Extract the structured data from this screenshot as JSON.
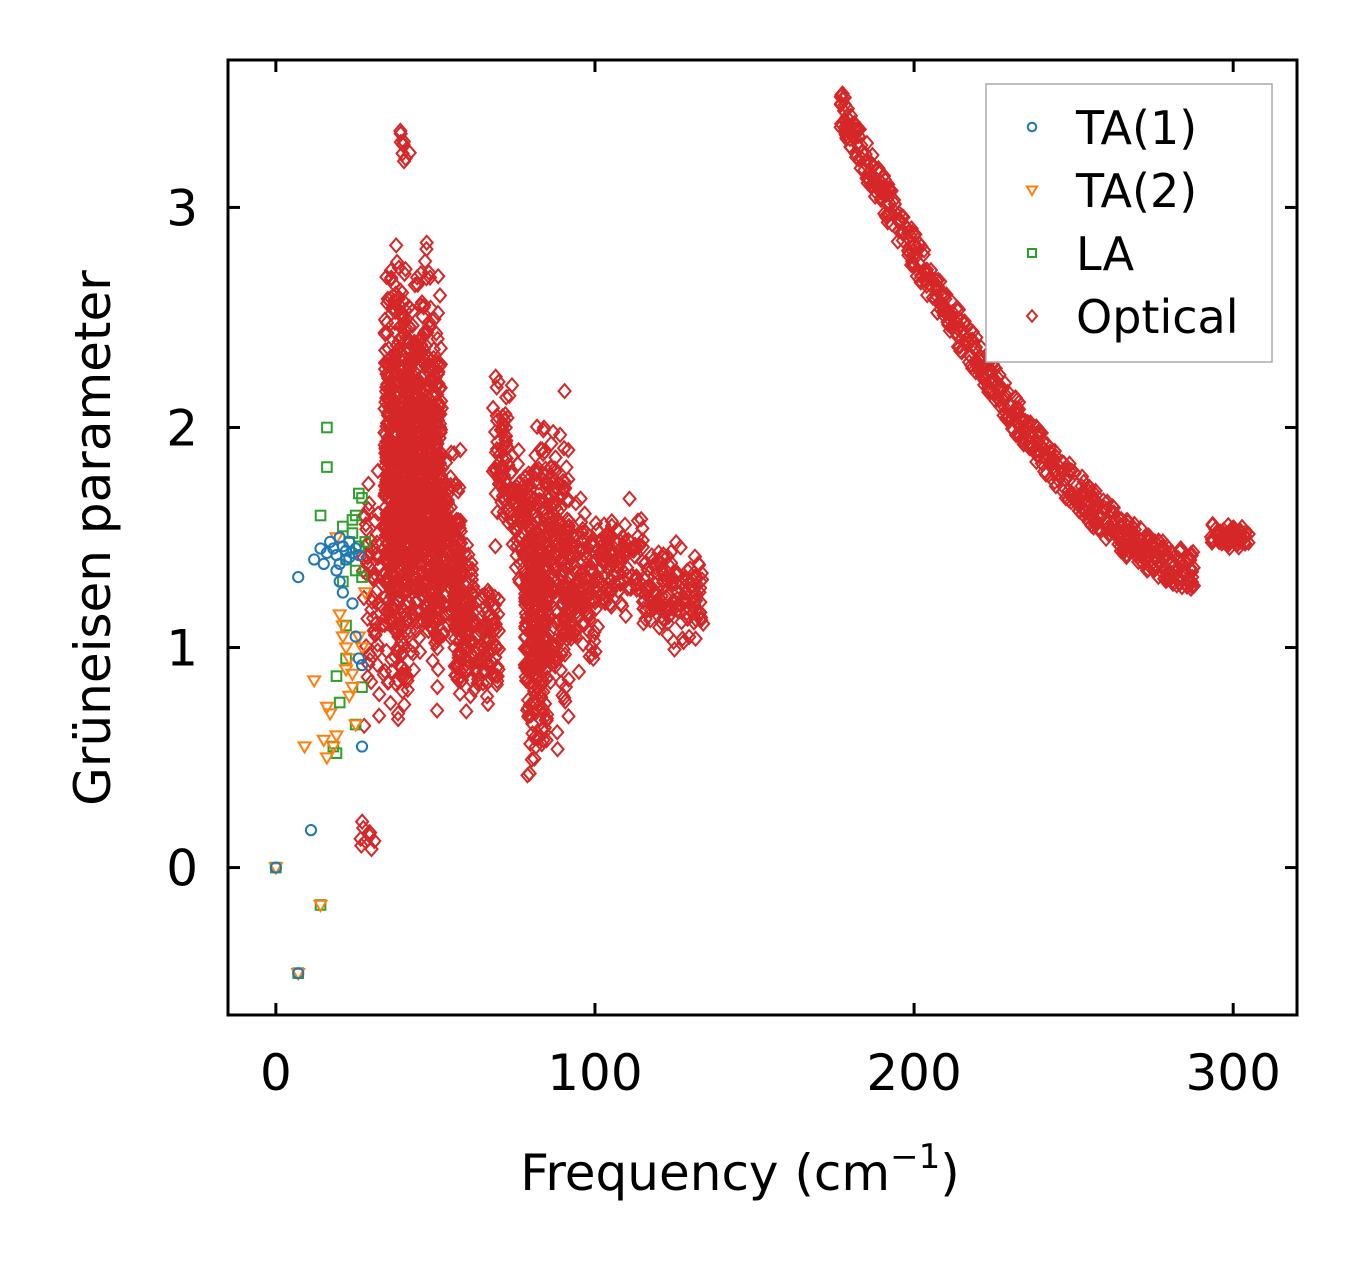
{
  "chart_data": {
    "type": "scatter",
    "title": "",
    "xlabel": "Frequency (cm",
    "xlabel_sup": "−1",
    "xlabel_tail": ")",
    "ylabel": "Grüneisen parameter",
    "xlim": [
      -15,
      320
    ],
    "ylim": [
      -0.67,
      3.67
    ],
    "xticks": [
      0,
      100,
      200,
      300
    ],
    "xtick_labels": [
      "0",
      "100",
      "200",
      "300"
    ],
    "yticks": [
      0,
      1,
      2,
      3
    ],
    "ytick_labels": [
      "0",
      "1",
      "2",
      "3"
    ],
    "grid": false,
    "legend_position": "top-right",
    "series": [
      {
        "name": "TA(1)",
        "marker": "circle",
        "color": "#1f77b4",
        "points": [
          [
            0,
            0
          ],
          [
            7,
            -0.48
          ],
          [
            7,
            1.32
          ],
          [
            11,
            0.17
          ],
          [
            12,
            1.4
          ],
          [
            14,
            1.45
          ],
          [
            15,
            1.38
          ],
          [
            16,
            1.43
          ],
          [
            17,
            1.48
          ],
          [
            18,
            1.45
          ],
          [
            19,
            1.42
          ],
          [
            20,
            1.5
          ],
          [
            20,
            1.38
          ],
          [
            21,
            1.46
          ],
          [
            22,
            1.4
          ],
          [
            22,
            1.44
          ],
          [
            23,
            1.48
          ],
          [
            23,
            1.41
          ],
          [
            24,
            1.43
          ],
          [
            24,
            1.2
          ],
          [
            25,
            1.05
          ],
          [
            26,
            0.95
          ],
          [
            27,
            0.92
          ],
          [
            27,
            0.55
          ],
          [
            20,
            1.3
          ],
          [
            21,
            1.25
          ],
          [
            19,
            1.35
          ],
          [
            25,
            1.45
          ],
          [
            26,
            1.42
          ]
        ]
      },
      {
        "name": "TA(2)",
        "marker": "triangle-down",
        "color": "#ff7f0e",
        "points": [
          [
            0,
            0
          ],
          [
            7,
            -0.48
          ],
          [
            9,
            0.55
          ],
          [
            12,
            0.85
          ],
          [
            14,
            -0.17
          ],
          [
            15,
            0.58
          ],
          [
            16,
            0.5
          ],
          [
            16,
            0.73
          ],
          [
            17,
            0.7
          ],
          [
            18,
            0.55
          ],
          [
            19,
            0.6
          ],
          [
            20,
            1.15
          ],
          [
            21,
            1.1
          ],
          [
            22,
            1.0
          ],
          [
            22,
            0.9
          ],
          [
            23,
            0.95
          ],
          [
            23,
            0.78
          ],
          [
            24,
            0.82
          ],
          [
            25,
            0.65
          ],
          [
            26,
            1.05
          ],
          [
            27,
            1.0
          ],
          [
            28,
            1.25
          ],
          [
            21,
            1.05
          ],
          [
            24,
            0.88
          ],
          [
            19,
            1.5
          ]
        ]
      },
      {
        "name": "LA",
        "marker": "square",
        "color": "#2ca02c",
        "points": [
          [
            0,
            0
          ],
          [
            7,
            -0.48
          ],
          [
            14,
            -0.17
          ],
          [
            14,
            1.6
          ],
          [
            16,
            2.0
          ],
          [
            16,
            1.82
          ],
          [
            18,
            0.55
          ],
          [
            19,
            0.52
          ],
          [
            19,
            0.87
          ],
          [
            20,
            0.75
          ],
          [
            21,
            1.3
          ],
          [
            21,
            1.55
          ],
          [
            22,
            1.1
          ],
          [
            22,
            0.95
          ],
          [
            23,
            1.48
          ],
          [
            24,
            1.58
          ],
          [
            24,
            1.52
          ],
          [
            25,
            1.6
          ],
          [
            25,
            0.65
          ],
          [
            26,
            1.7
          ],
          [
            26,
            1.46
          ],
          [
            27,
            1.68
          ],
          [
            27,
            1.32
          ],
          [
            27,
            0.82
          ],
          [
            28,
            1.48
          ],
          [
            25,
            1.35
          ],
          [
            22,
            1.4
          ]
        ]
      },
      {
        "name": "Optical",
        "marker": "diamond",
        "color": "#d62728",
        "clusters": [
          {
            "x": [
              26,
              31
            ],
            "y": [
              0.0,
              0.25
            ],
            "n": 10
          },
          {
            "x": [
              27,
              34
            ],
            "y": [
              0.45,
              2.0
            ],
            "n": 60
          },
          {
            "x": [
              34,
              42
            ],
            "y": [
              0.5,
              3.0
            ],
            "n": 650
          },
          {
            "x": [
              42,
              52
            ],
            "y": [
              0.55,
              3.0
            ],
            "n": 650
          },
          {
            "x": [
              39,
              42
            ],
            "y": [
              3.1,
              3.46
            ],
            "n": 10
          },
          {
            "x": [
              50,
              58
            ],
            "y": [
              0.9,
              2.0
            ],
            "n": 200
          },
          {
            "x": [
              56,
              62
            ],
            "y": [
              0.65,
              1.6
            ],
            "n": 120
          },
          {
            "x": [
              62,
              70
            ],
            "y": [
              0.65,
              1.45
            ],
            "n": 90
          },
          {
            "x": [
              68,
              74
            ],
            "y": [
              1.3,
              2.4
            ],
            "n": 70
          },
          {
            "x": [
              74,
              80
            ],
            "y": [
              1.15,
              1.95
            ],
            "n": 80
          },
          {
            "x": [
              78,
              85
            ],
            "y": [
              0.25,
              1.9
            ],
            "n": 220
          },
          {
            "x": [
              81,
              92
            ],
            "y": [
              0.4,
              2.35
            ],
            "n": 280
          },
          {
            "x": [
              90,
              101
            ],
            "y": [
              0.8,
              1.75
            ],
            "n": 160
          },
          {
            "x": [
              100,
              115
            ],
            "y": [
              1.05,
              1.72
            ],
            "n": 130
          },
          {
            "x": [
              115,
              134
            ],
            "y": [
              0.95,
              1.55
            ],
            "n": 150
          },
          {
            "x": [
              293,
              305
            ],
            "y": [
              1.44,
              1.57
            ],
            "n": 90
          }
        ],
        "curve": {
          "x": [
            177,
            288
          ],
          "y_at_start": 3.45,
          "y_at_end": 1.35,
          "n": 650
        }
      }
    ]
  }
}
